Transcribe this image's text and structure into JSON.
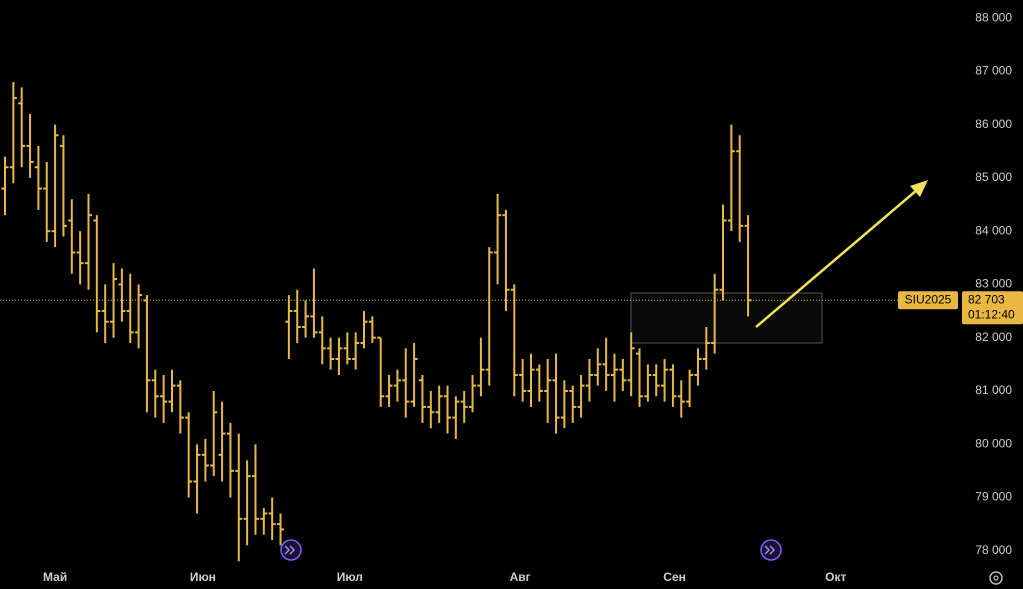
{
  "chart_data": {
    "type": "ohlc",
    "symbol": "SIU2025",
    "color": "#e8b84a",
    "open": [
      84800,
      85200,
      86400,
      85600,
      85200,
      84800,
      84000,
      85600,
      84200,
      83600,
      83400,
      84200,
      82500,
      82300,
      83000,
      82500,
      82100,
      82700,
      81200,
      80900,
      80800,
      81100,
      80500,
      79300,
      79800,
      79600,
      79800,
      80200,
      79500,
      78600,
      79400,
      78600,
      78700,
      78500,
      82300,
      82500,
      82200,
      82400,
      82100,
      81800,
      81600,
      81800,
      81600,
      81900,
      82300,
      82000,
      80900,
      81100,
      81200,
      80800,
      81200,
      80700,
      80600,
      80900,
      80500,
      80800,
      80700,
      81100,
      81400,
      83600,
      84300,
      82900,
      81300,
      81000,
      81400,
      81000,
      81200,
      80500,
      81000,
      80700,
      81100,
      81300,
      81500,
      81300,
      81400,
      81200,
      81700,
      80900,
      81300,
      81100,
      81400,
      80900,
      80800,
      81300,
      81600,
      81900,
      82900,
      84200,
      85500,
      84100
    ],
    "high": [
      85400,
      86800,
      86700,
      86200,
      85600,
      85300,
      86000,
      85800,
      84600,
      84000,
      84700,
      84300,
      83000,
      83400,
      83300,
      83200,
      83000,
      82800,
      81400,
      81300,
      81400,
      81200,
      80600,
      80000,
      80100,
      81000,
      80800,
      80400,
      80200,
      79700,
      80000,
      78800,
      79000,
      78700,
      82800,
      82900,
      82700,
      83300,
      82400,
      82000,
      82000,
      82100,
      82100,
      82500,
      82400,
      82000,
      81300,
      81400,
      81800,
      81900,
      81300,
      81000,
      81100,
      81100,
      80900,
      81000,
      81300,
      82000,
      83700,
      84700,
      84400,
      83000,
      81600,
      81700,
      81500,
      81600,
      81700,
      81200,
      81100,
      81300,
      81600,
      81800,
      82000,
      81700,
      81600,
      82100,
      81800,
      81500,
      81500,
      81600,
      81500,
      81200,
      81400,
      81800,
      82200,
      83200,
      84500,
      86000,
      85800,
      84300
    ],
    "low": [
      84300,
      84900,
      85200,
      85000,
      84400,
      83800,
      83700,
      83900,
      83200,
      83000,
      82900,
      82100,
      81900,
      82000,
      82300,
      81900,
      81800,
      80600,
      80500,
      80400,
      80600,
      80200,
      79000,
      78700,
      79300,
      79400,
      79300,
      79000,
      77800,
      78100,
      78300,
      78300,
      78200,
      78100,
      81600,
      81900,
      82000,
      82000,
      81500,
      81400,
      81300,
      81500,
      81400,
      81800,
      81900,
      80700,
      80700,
      80800,
      80500,
      80700,
      80400,
      80300,
      80400,
      80200,
      80100,
      80400,
      80600,
      80900,
      81100,
      83000,
      82500,
      80900,
      80800,
      80700,
      80800,
      80400,
      80200,
      80300,
      80400,
      80500,
      80800,
      81100,
      81000,
      80800,
      81000,
      80900,
      80700,
      80800,
      80900,
      80800,
      80700,
      80500,
      80700,
      81100,
      81400,
      81700,
      82700,
      84000,
      83800,
      82400
    ],
    "close": [
      85200,
      86500,
      85600,
      85300,
      84800,
      84000,
      85800,
      84100,
      83600,
      83400,
      84300,
      82500,
      82300,
      83100,
      82500,
      82100,
      82800,
      81200,
      80900,
      80800,
      81100,
      80500,
      79300,
      79800,
      79600,
      80600,
      80200,
      79500,
      78600,
      79400,
      78600,
      78700,
      78500,
      78400,
      82500,
      82200,
      82400,
      82100,
      81800,
      81600,
      81800,
      81600,
      81900,
      82300,
      82000,
      80900,
      81100,
      81200,
      80800,
      81600,
      80700,
      80600,
      80900,
      80500,
      80800,
      80700,
      81100,
      81400,
      83600,
      84300,
      82900,
      81300,
      81000,
      81400,
      81000,
      81200,
      80500,
      81000,
      80700,
      81100,
      81300,
      81500,
      81300,
      81400,
      81200,
      81800,
      80900,
      81300,
      81100,
      81400,
      80900,
      80800,
      81300,
      81600,
      81900,
      82900,
      84200,
      85500,
      84100,
      82703
    ],
    "xlim": [
      -0.6,
      106.6
    ],
    "xticks": [
      {
        "value": 6,
        "label": "Май"
      },
      {
        "value": 23.7,
        "label": "Июн"
      },
      {
        "value": 41.3,
        "label": "Июл"
      },
      {
        "value": 61.7,
        "label": "Авг"
      },
      {
        "value": 80.2,
        "label": "Сен"
      },
      {
        "value": 99.5,
        "label": "Окт"
      }
    ],
    "ylim": [
      77770,
      88340
    ],
    "yticks": [
      {
        "value": 78000,
        "label": "78 000"
      },
      {
        "value": 79000,
        "label": "79 000"
      },
      {
        "value": 80000,
        "label": "80 000"
      },
      {
        "value": 81000,
        "label": "81 000"
      },
      {
        "value": 82000,
        "label": "82 000"
      },
      {
        "value": 83000,
        "label": "83 000"
      },
      {
        "value": 84000,
        "label": "84 000"
      },
      {
        "value": 85000,
        "label": "85 000"
      },
      {
        "value": 86000,
        "label": "86 000"
      },
      {
        "value": 87000,
        "label": "87 000"
      },
      {
        "value": 88000,
        "label": "88 000"
      }
    ],
    "price_line": {
      "values": [
        82703
      ],
      "value_labels": [
        "82 703"
      ],
      "countdown": "01:12:40"
    }
  }
}
